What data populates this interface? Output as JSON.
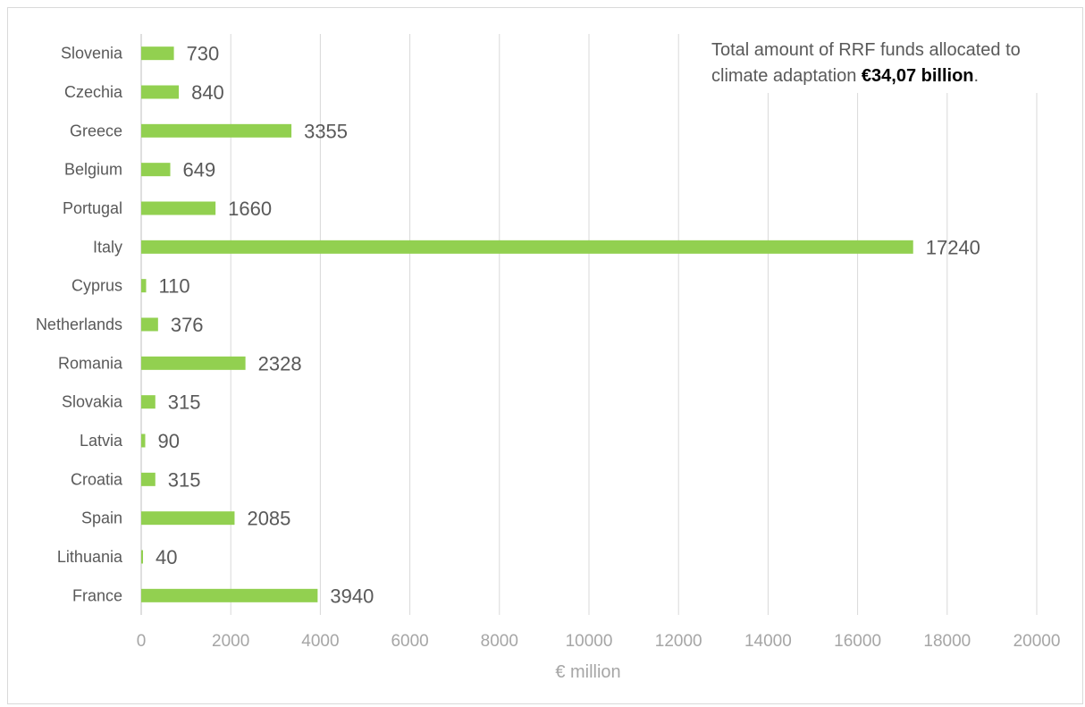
{
  "chart_data": {
    "type": "bar",
    "orientation": "horizontal",
    "categories": [
      "Slovenia",
      "Czechia",
      "Greece",
      "Belgium",
      "Portugal",
      "Italy",
      "Cyprus",
      "Netherlands",
      "Romania",
      "Slovakia",
      "Latvia",
      "Croatia",
      "Spain",
      "Lithuania",
      "France"
    ],
    "values": [
      730,
      840,
      3355,
      649,
      1660,
      17240,
      110,
      376,
      2328,
      315,
      90,
      315,
      2085,
      40,
      3940
    ],
    "xlabel": "€ million",
    "ylabel": "",
    "xlim": [
      0,
      20000
    ],
    "x_ticks": [
      0,
      2000,
      4000,
      6000,
      8000,
      10000,
      12000,
      14000,
      16000,
      18000,
      20000
    ],
    "grid": "vertical",
    "bar_color": "#92d050",
    "annotation": {
      "text": "Total amount of RRF funds allocated to climate adaptation ",
      "emphasis": "€34,07 billion",
      "suffix": "."
    }
  }
}
